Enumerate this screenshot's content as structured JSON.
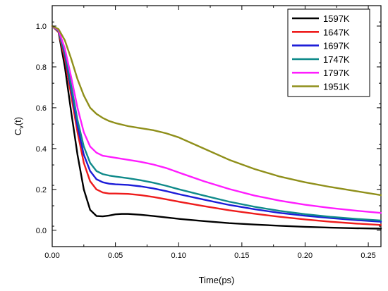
{
  "chart_data": {
    "type": "line",
    "xlabel": "Time(ps)",
    "ylabel": {
      "main": "C",
      "sub": "v",
      "suffix": "(t)"
    },
    "xlim": [
      0,
      0.26
    ],
    "ylim": [
      -0.08,
      1.1
    ],
    "xticks": [
      0.0,
      0.05,
      0.1,
      0.15,
      0.2,
      0.25
    ],
    "xtick_labels": [
      "0.00",
      "0.05",
      "0.10",
      "0.15",
      "0.20",
      "0.25"
    ],
    "yticks": [
      0.0,
      0.2,
      0.4,
      0.6,
      0.8,
      1.0
    ],
    "ytick_labels": [
      "0.0",
      "0.2",
      "0.4",
      "0.6",
      "0.8",
      "1.0"
    ],
    "grid": false,
    "legend_position": "top-right",
    "series": [
      {
        "name": "1597K",
        "color": "#000000",
        "x": [
          0,
          0.005,
          0.01,
          0.015,
          0.02,
          0.025,
          0.03,
          0.035,
          0.04,
          0.045,
          0.05,
          0.055,
          0.06,
          0.07,
          0.08,
          0.09,
          0.1,
          0.12,
          0.14,
          0.16,
          0.18,
          0.2,
          0.22,
          0.24,
          0.26
        ],
        "y": [
          1.0,
          0.97,
          0.8,
          0.58,
          0.37,
          0.2,
          0.1,
          0.07,
          0.068,
          0.072,
          0.078,
          0.08,
          0.08,
          0.076,
          0.07,
          0.063,
          0.056,
          0.045,
          0.035,
          0.028,
          0.022,
          0.017,
          0.013,
          0.01,
          0.008
        ]
      },
      {
        "name": "1647K",
        "color": "#ee1c1c",
        "x": [
          0,
          0.005,
          0.01,
          0.015,
          0.02,
          0.025,
          0.03,
          0.035,
          0.04,
          0.045,
          0.05,
          0.06,
          0.07,
          0.08,
          0.09,
          0.1,
          0.12,
          0.14,
          0.16,
          0.18,
          0.2,
          0.22,
          0.24,
          0.26
        ],
        "y": [
          1.0,
          0.97,
          0.84,
          0.66,
          0.48,
          0.33,
          0.24,
          0.2,
          0.185,
          0.18,
          0.18,
          0.178,
          0.172,
          0.163,
          0.152,
          0.14,
          0.118,
          0.098,
          0.081,
          0.066,
          0.053,
          0.042,
          0.033,
          0.026
        ]
      },
      {
        "name": "1697K",
        "color": "#1c1cd8",
        "x": [
          0,
          0.005,
          0.01,
          0.015,
          0.02,
          0.025,
          0.03,
          0.035,
          0.04,
          0.045,
          0.05,
          0.06,
          0.07,
          0.08,
          0.09,
          0.1,
          0.12,
          0.14,
          0.16,
          0.18,
          0.2,
          0.22,
          0.24,
          0.26
        ],
        "y": [
          1.0,
          0.975,
          0.86,
          0.69,
          0.51,
          0.37,
          0.29,
          0.25,
          0.235,
          0.228,
          0.225,
          0.222,
          0.215,
          0.205,
          0.192,
          0.177,
          0.15,
          0.124,
          0.103,
          0.085,
          0.071,
          0.06,
          0.05,
          0.042
        ]
      },
      {
        "name": "1747K",
        "color": "#0f8a8a",
        "x": [
          0,
          0.005,
          0.01,
          0.015,
          0.02,
          0.025,
          0.03,
          0.035,
          0.04,
          0.045,
          0.05,
          0.06,
          0.07,
          0.08,
          0.09,
          0.1,
          0.12,
          0.14,
          0.16,
          0.18,
          0.2,
          0.22,
          0.24,
          0.26
        ],
        "y": [
          1.0,
          0.975,
          0.87,
          0.71,
          0.54,
          0.41,
          0.33,
          0.29,
          0.275,
          0.268,
          0.263,
          0.255,
          0.245,
          0.233,
          0.218,
          0.201,
          0.17,
          0.14,
          0.115,
          0.095,
          0.079,
          0.066,
          0.056,
          0.048
        ]
      },
      {
        "name": "1797K",
        "color": "#ff1cff",
        "x": [
          0,
          0.005,
          0.01,
          0.015,
          0.02,
          0.025,
          0.03,
          0.035,
          0.04,
          0.045,
          0.05,
          0.06,
          0.07,
          0.08,
          0.09,
          0.1,
          0.12,
          0.14,
          0.16,
          0.18,
          0.2,
          0.22,
          0.24,
          0.26
        ],
        "y": [
          1.0,
          0.98,
          0.89,
          0.75,
          0.6,
          0.48,
          0.41,
          0.38,
          0.365,
          0.36,
          0.355,
          0.345,
          0.335,
          0.322,
          0.305,
          0.283,
          0.24,
          0.202,
          0.17,
          0.145,
          0.125,
          0.109,
          0.096,
          0.085
        ]
      },
      {
        "name": "1951K",
        "color": "#8f8f1a",
        "x": [
          0,
          0.005,
          0.01,
          0.015,
          0.02,
          0.025,
          0.03,
          0.035,
          0.04,
          0.045,
          0.05,
          0.06,
          0.07,
          0.08,
          0.09,
          0.1,
          0.12,
          0.14,
          0.16,
          0.18,
          0.2,
          0.22,
          0.24,
          0.26
        ],
        "y": [
          1.0,
          0.985,
          0.93,
          0.84,
          0.74,
          0.66,
          0.6,
          0.57,
          0.55,
          0.535,
          0.525,
          0.51,
          0.5,
          0.49,
          0.475,
          0.455,
          0.4,
          0.345,
          0.3,
          0.263,
          0.235,
          0.212,
          0.192,
          0.172
        ]
      }
    ]
  }
}
